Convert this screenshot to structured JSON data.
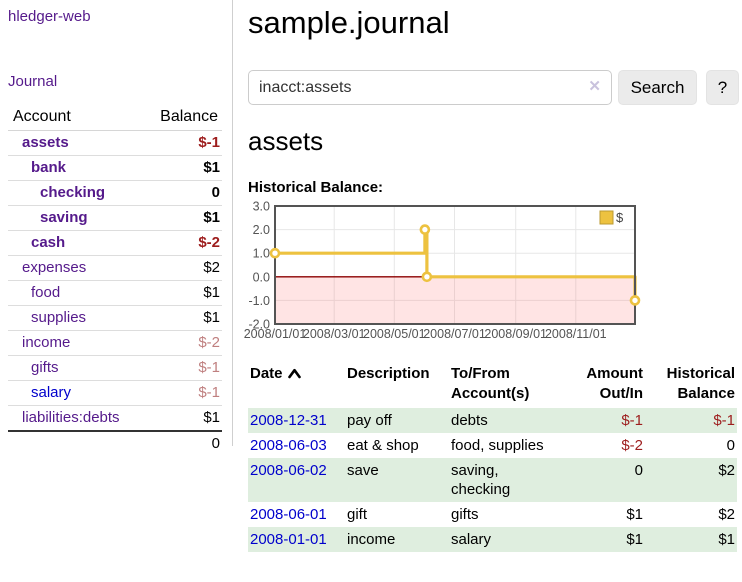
{
  "app": {
    "brand": "hledger-web",
    "nav_journal": "Journal"
  },
  "sidebar": {
    "header": {
      "account": "Account",
      "balance": "Balance"
    },
    "accounts": [
      {
        "name": "assets",
        "level": 0,
        "strong": true,
        "blue": false,
        "balance": "$-1",
        "balance_class": "neg-strong"
      },
      {
        "name": "bank",
        "level": 1,
        "strong": true,
        "blue": false,
        "balance": "$1",
        "balance_class": ""
      },
      {
        "name": "checking",
        "level": 2,
        "strong": true,
        "blue": false,
        "balance": "0",
        "balance_class": ""
      },
      {
        "name": "saving",
        "level": 2,
        "strong": true,
        "blue": false,
        "balance": "$1",
        "balance_class": ""
      },
      {
        "name": "cash",
        "level": 1,
        "strong": true,
        "blue": false,
        "balance": "$-2",
        "balance_class": "neg-strong"
      },
      {
        "name": "expenses",
        "level": 0,
        "strong": false,
        "blue": false,
        "balance": "$2",
        "balance_class": ""
      },
      {
        "name": "food",
        "level": 1,
        "strong": false,
        "blue": false,
        "balance": "$1",
        "balance_class": ""
      },
      {
        "name": "supplies",
        "level": 1,
        "strong": false,
        "blue": false,
        "balance": "$1",
        "balance_class": ""
      },
      {
        "name": "income",
        "level": 0,
        "strong": false,
        "blue": false,
        "balance": "$-2",
        "balance_class": "neg-soft"
      },
      {
        "name": "gifts",
        "level": 1,
        "strong": false,
        "blue": false,
        "balance": "$-1",
        "balance_class": "neg-soft"
      },
      {
        "name": "salary",
        "level": 1,
        "strong": false,
        "blue": true,
        "balance": "$-1",
        "balance_class": "neg-soft"
      },
      {
        "name": "liabilities:debts",
        "level": 0,
        "strong": false,
        "blue": false,
        "balance": "$1",
        "balance_class": ""
      }
    ],
    "total": "0"
  },
  "header": {
    "title": "sample.journal"
  },
  "search": {
    "query": "inacct:assets",
    "clear_glyph": "✕",
    "search_button": "Search",
    "help_button": "?"
  },
  "register": {
    "heading": "assets",
    "chart_label": "Historical Balance:",
    "table": {
      "headers": {
        "date": "Date",
        "description": "Description",
        "accounts": "To/From Account(s)",
        "amount": "Amount Out/In",
        "balance": "Historical Balance"
      },
      "rows": [
        {
          "date": "2008-12-31",
          "description": "pay off",
          "accounts": "debts",
          "amount": "$-1",
          "balance": "$-1"
        },
        {
          "date": "2008-06-03",
          "description": "eat & shop",
          "accounts": "food, supplies",
          "amount": "$-2",
          "balance": "0"
        },
        {
          "date": "2008-06-02",
          "description": "save",
          "accounts": "saving, checking",
          "amount": "0",
          "balance": "$2"
        },
        {
          "date": "2008-06-01",
          "description": "gift",
          "accounts": "gifts",
          "amount": "$1",
          "balance": "$2"
        },
        {
          "date": "2008-01-01",
          "description": "income",
          "accounts": "salary",
          "amount": "$1",
          "balance": "$1"
        }
      ]
    }
  },
  "chart_data": {
    "type": "line",
    "title": "Historical Balance",
    "step": "after",
    "legend": [
      {
        "label": "$",
        "color": "#edc240"
      }
    ],
    "legend_position": "top-right",
    "grid": true,
    "negative_region": true,
    "x_range_days": [
      0,
      365
    ],
    "x_tick_labels": [
      "2008/01/01",
      "2008/03/01",
      "2008/05/01",
      "2008/07/01",
      "2008/09/01",
      "2008/11/01"
    ],
    "x_tick_days": [
      0,
      60,
      121,
      182,
      244,
      305
    ],
    "y_range": [
      -2,
      3
    ],
    "y_ticks": [
      3.0,
      2.0,
      1.0,
      0.0,
      -1.0,
      -2.0
    ],
    "y_tick_labels": [
      "3.0",
      "2.0",
      "1.0",
      "0.0",
      "-1.0",
      "-2.0"
    ],
    "points": [
      {
        "date": "2008-01-01",
        "day": 0,
        "value": 1
      },
      {
        "date": "2008-06-01",
        "day": 152,
        "value": 2
      },
      {
        "date": "2008-06-03",
        "day": 154,
        "value": 0
      },
      {
        "date": "2008-12-31",
        "day": 365,
        "value": -1
      }
    ]
  },
  "colors": {
    "link_purple": "#551a8b",
    "link_blue": "#0000cc",
    "negative_strong": "#9d1d1d",
    "negative_soft": "#bf7f7f",
    "row_shade_green": "#dfeedf",
    "chart_line_gold": "#edc240",
    "chart_zero_line": "#8b0000",
    "chart_border": "#545454",
    "chart_grid": "#e7e7e7",
    "chart_negative_fill": "rgba(255,90,90,0.16)",
    "axis_text": "#545454"
  }
}
